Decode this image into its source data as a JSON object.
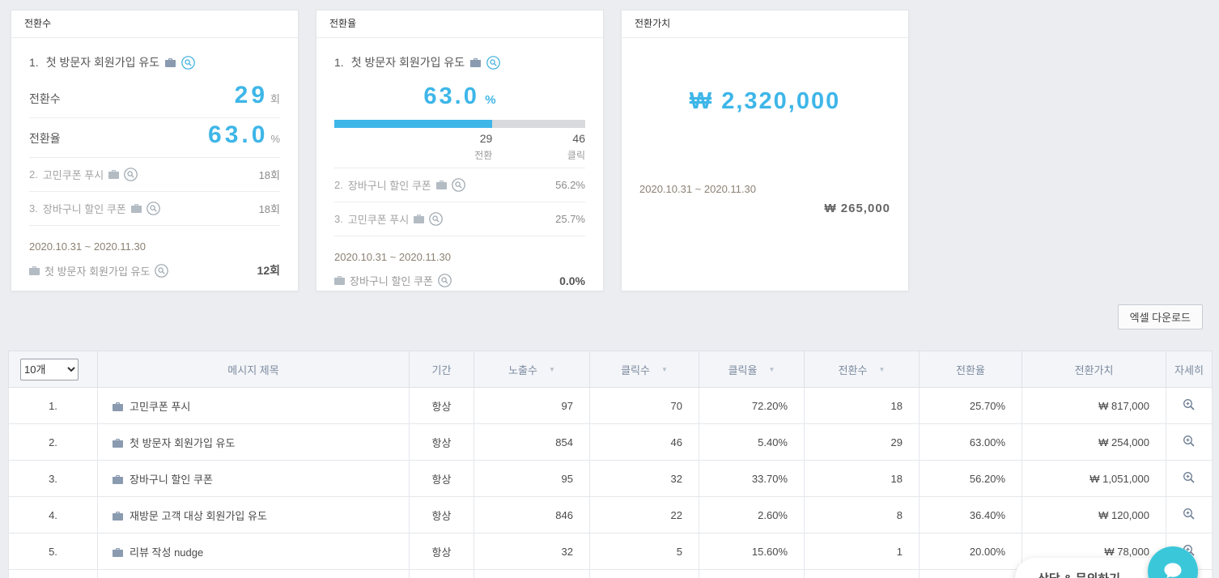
{
  "colors": {
    "accent_blue": "#3eb6e8",
    "bar_gray": "#d9dadd",
    "chat_teal": "#3bc7da"
  },
  "cards": {
    "conversions": {
      "title": "전환수",
      "top_rank": "1.",
      "top_label": "첫 방문자 회원가입 유도",
      "metrics": [
        {
          "label": "전환수",
          "value": "29",
          "unit": "회"
        },
        {
          "label": "전환율",
          "value": "63.0",
          "unit": "%"
        }
      ],
      "others": [
        {
          "rank": "2.",
          "label": "고민쿠폰 푸시",
          "value": "18회"
        },
        {
          "rank": "3.",
          "label": "장바구니 할인 쿠폰",
          "value": "18회"
        }
      ],
      "period": "2020.10.31 ~ 2020.11.30",
      "footer_label": "첫 방문자 회원가입 유도",
      "footer_value": "12회"
    },
    "rate": {
      "title": "전환율",
      "top_rank": "1.",
      "top_label": "첫 방문자 회원가입 유도",
      "value": "63.0",
      "unit": "%",
      "bar_percent": 63,
      "bar_conv_value": "29",
      "bar_conv_label": "전환",
      "bar_click_value": "46",
      "bar_click_label": "클릭",
      "others": [
        {
          "rank": "2.",
          "label": "장바구니 할인 쿠폰",
          "value": "56.2%"
        },
        {
          "rank": "3.",
          "label": "고민쿠폰 푸시",
          "value": "25.7%"
        }
      ],
      "period": "2020.10.31 ~ 2020.11.30",
      "footer_label": "장바구니 할인 쿠폰",
      "footer_value": "0.0%"
    },
    "value": {
      "title": "전환가치",
      "total": "₩ 2,320,000",
      "period": "2020.10.31 ~ 2020.11.30",
      "amount": "₩ 265,000"
    }
  },
  "toolbar": {
    "excel_button": "엑셀 다운로드"
  },
  "table": {
    "page_size_selected": "10개",
    "columns": [
      {
        "label": "메시지 제목",
        "sortable": false
      },
      {
        "label": "기간",
        "sortable": false
      },
      {
        "label": "노출수",
        "sortable": true
      },
      {
        "label": "클릭수",
        "sortable": true
      },
      {
        "label": "클릭율",
        "sortable": true
      },
      {
        "label": "전환수",
        "sortable": true
      },
      {
        "label": "전환율",
        "sortable": false
      },
      {
        "label": "전환가치",
        "sortable": false
      },
      {
        "label": "자세히",
        "sortable": false
      }
    ],
    "rows": [
      {
        "no": "1.",
        "title": "고민쿠폰 푸시",
        "period": "항상",
        "impressions": "97",
        "clicks": "70",
        "ctr": "72.20%",
        "conversions": "18",
        "cvr": "25.70%",
        "value": "₩ 817,000"
      },
      {
        "no": "2.",
        "title": "첫 방문자 회원가입 유도",
        "period": "항상",
        "impressions": "854",
        "clicks": "46",
        "ctr": "5.40%",
        "conversions": "29",
        "cvr": "63.00%",
        "value": "₩ 254,000"
      },
      {
        "no": "3.",
        "title": "장바구니 할인 쿠폰",
        "period": "항상",
        "impressions": "95",
        "clicks": "32",
        "ctr": "33.70%",
        "conversions": "18",
        "cvr": "56.20%",
        "value": "₩ 1,051,000"
      },
      {
        "no": "4.",
        "title": "재방문 고객 대상 회원가입 유도",
        "period": "항상",
        "impressions": "846",
        "clicks": "22",
        "ctr": "2.60%",
        "conversions": "8",
        "cvr": "36.40%",
        "value": "₩ 120,000"
      },
      {
        "no": "5.",
        "title": "리뷰 작성 nudge",
        "period": "항상",
        "impressions": "32",
        "clicks": "5",
        "ctr": "15.60%",
        "conversions": "1",
        "cvr": "20.00%",
        "value": "₩ 78,000"
      }
    ]
  },
  "chat": {
    "label": "상담 & 문의하기"
  }
}
